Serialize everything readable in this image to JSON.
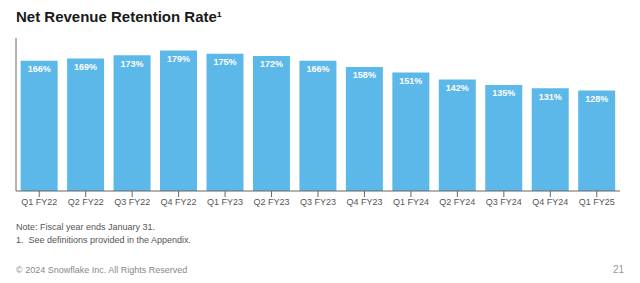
{
  "chart_data": {
    "type": "bar",
    "title": "Net Revenue Retention Rate¹",
    "categories": [
      "Q1 FY22",
      "Q2 FY22",
      "Q3 FY22",
      "Q4 FY22",
      "Q1 FY23",
      "Q2 FY23",
      "Q3 FY23",
      "Q4 FY23",
      "Q1 FY24",
      "Q2 FY24",
      "Q3 FY24",
      "Q4 FY24",
      "Q1 FY25"
    ],
    "values": [
      166,
      169,
      173,
      179,
      175,
      172,
      166,
      158,
      151,
      142,
      135,
      131,
      128
    ],
    "value_labels": [
      "166%",
      "169%",
      "173%",
      "179%",
      "175%",
      "172%",
      "166%",
      "158%",
      "151%",
      "142%",
      "135%",
      "131%",
      "128%"
    ],
    "data_labels": true,
    "color": "#5BB8E8",
    "ylim": [
      0,
      195
    ],
    "tick_labels": "x",
    "grid": false,
    "annotations": [
      "Note: Fiscal year ends January 31.",
      "1.  See definitions provided in the Appendix.",
      "© 2024 Snowflake Inc. All Rights Reserved",
      "21"
    ]
  }
}
